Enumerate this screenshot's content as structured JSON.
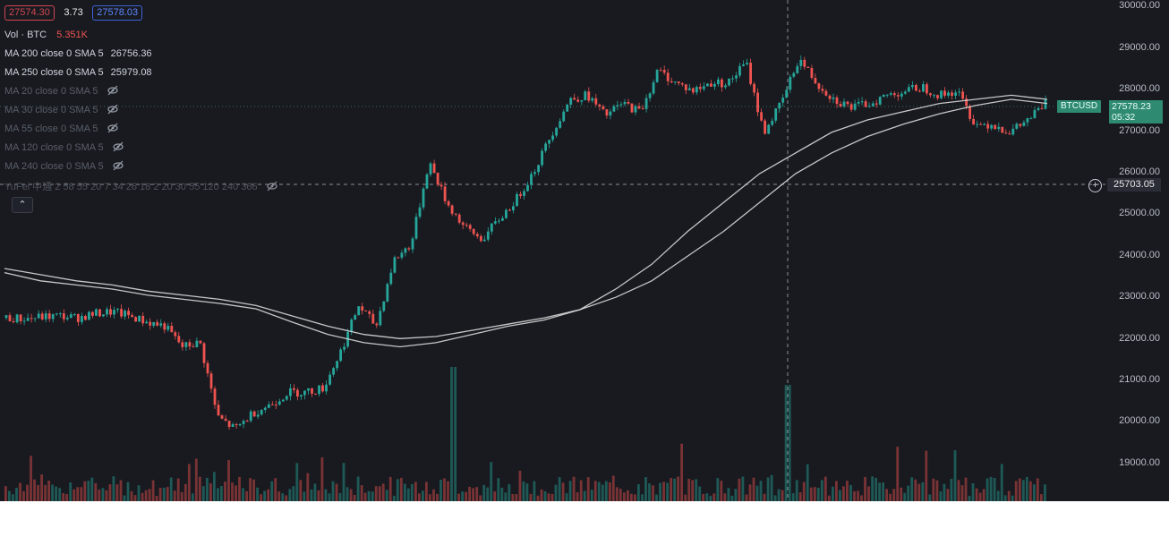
{
  "ohlc": {
    "open": "27574.30",
    "change": "3.73",
    "close": "27578.03"
  },
  "volume": {
    "label": "Vol · BTC",
    "value": "5.351K"
  },
  "indicators": [
    {
      "label": "MA 200 close 0 SMA 5",
      "value": "26756.36",
      "visible": true
    },
    {
      "label": "MA 250 close 0 SMA 5",
      "value": "25979.08",
      "visible": true
    },
    {
      "label": "MA 20 close 0 SMA 5",
      "visible": false
    },
    {
      "label": "MA 30 close 0 SMA 5",
      "visible": false
    },
    {
      "label": "MA 55 close 0 SMA 5",
      "visible": false
    },
    {
      "label": "MA 120 close 0 SMA 5",
      "visible": false
    },
    {
      "label": "MA 240 close 0 SMA 5",
      "visible": false
    }
  ],
  "yufei_label": "YuFei 中通 2 58 55 20 7 34 26 18 2 20 30 55 120 240 366",
  "collapse_glyph": "⌃",
  "price_axis": [
    "30000.00",
    "29000.00",
    "28000.00",
    "27000.00",
    "26000.00",
    "25000.00",
    "24000.00",
    "23000.00",
    "22000.00",
    "21000.00",
    "20000.00",
    "19000.00"
  ],
  "symbol_tag": "BTCUSD",
  "last_price": "27578.23",
  "countdown": "05:32",
  "crosshair_price": "25703.05",
  "plus_glyph": "+",
  "colors": {
    "up": "#26a69a",
    "down": "#ef5350",
    "background": "#181a20",
    "ma": "#d9d9d9",
    "tag": "#2f8a72"
  },
  "chart_data": {
    "type": "line",
    "ylim": [
      18500,
      30000
    ],
    "series": [
      {
        "values": [
          22400,
          22380,
          22420,
          22450,
          22400,
          22500,
          22550,
          22450,
          22300,
          22200,
          21700,
          21800,
          20000,
          19700,
          20100,
          20300,
          20600,
          20600,
          20700,
          21600,
          22700,
          22200,
          23800,
          24200,
          26200,
          25200,
          24600,
          24300,
          24800,
          25300,
          26000,
          26900,
          27700,
          27800,
          27300,
          27600,
          27400,
          28400,
          28100,
          27900,
          28100,
          28100,
          28600,
          26900,
          27600,
          28700,
          28100,
          27700,
          27500,
          27600,
          27800,
          27900,
          28000,
          27800,
          27900,
          27100,
          27100,
          26900,
          27200,
          27600
        ]
      },
      {
        "values": [
          23500,
          23300,
          23200,
          23100,
          22950,
          22850,
          22750,
          22620,
          22300,
          22000,
          21800,
          21700,
          21800,
          22000,
          22200,
          22350,
          22600,
          23100,
          23700,
          24500,
          25200,
          25900,
          26400,
          26900,
          27200,
          27400,
          27600,
          27700,
          27800,
          27700
        ]
      },
      {
        "values": [
          23600,
          23450,
          23300,
          23200,
          23050,
          22950,
          22850,
          22700,
          22450,
          22200,
          22000,
          21900,
          21950,
          22100,
          22250,
          22400,
          22600,
          22900,
          23300,
          23900,
          24500,
          25200,
          25900,
          26400,
          26800,
          27100,
          27350,
          27550,
          27700,
          27600
        ]
      }
    ]
  }
}
